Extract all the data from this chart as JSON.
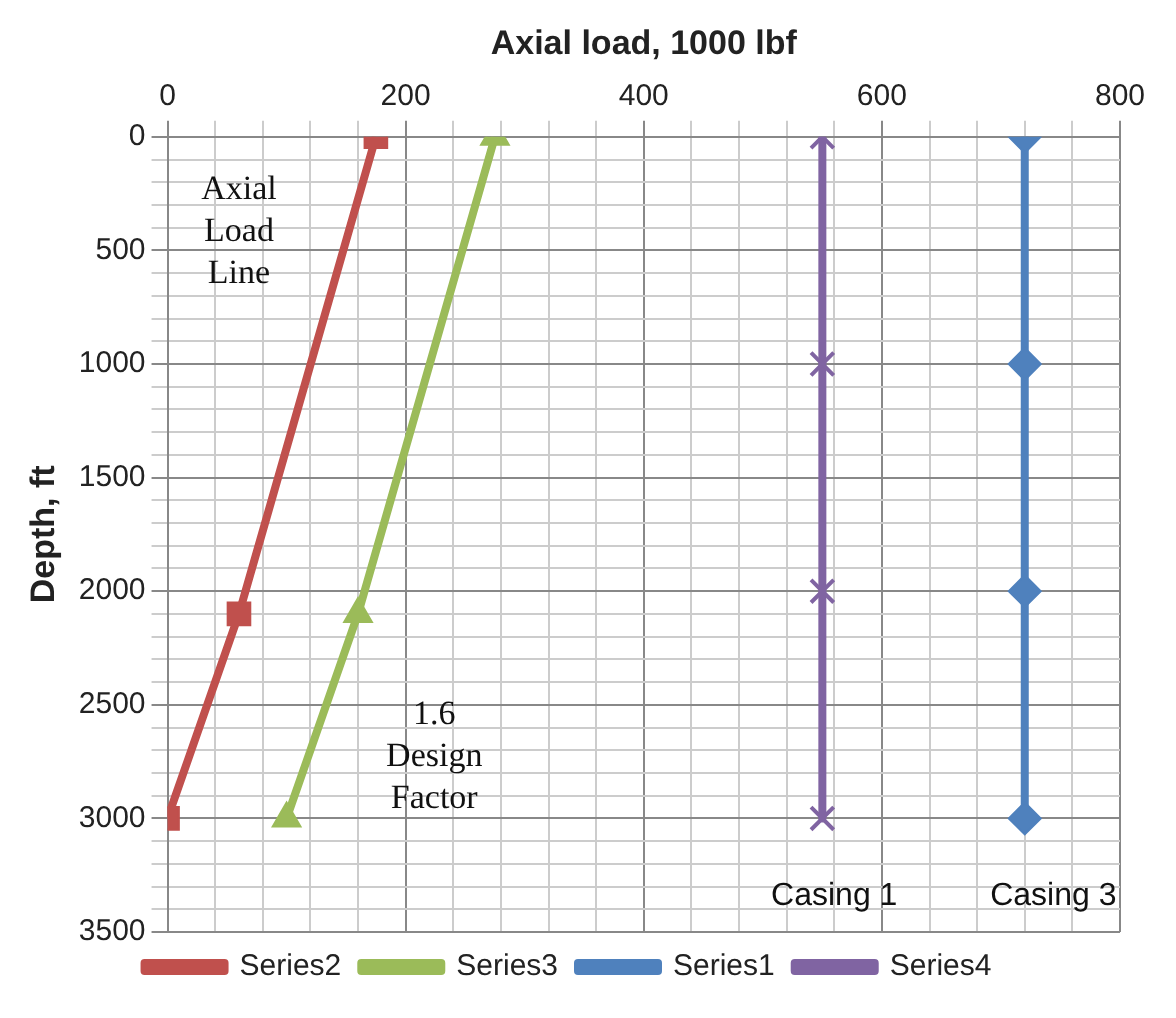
{
  "chart_data": {
    "type": "line",
    "xlabel": "Axial load, 1000 lbf",
    "ylabel": "Depth, ft",
    "xlim": [
      0,
      800
    ],
    "xticks": [
      0,
      200,
      400,
      600,
      800
    ],
    "ylim": [
      3500,
      0
    ],
    "yticks": [
      0,
      500,
      1000,
      1500,
      2000,
      2500,
      3000,
      3500
    ],
    "grid": true,
    "legend": "bottom",
    "line_style": "solid",
    "series": [
      {
        "name": "Series2",
        "color": "#c0504d",
        "marker": "square",
        "x": [
          175,
          60,
          0
        ],
        "values": [
          0,
          2100,
          3000
        ]
      },
      {
        "name": "Series3",
        "color": "#9bbb59",
        "marker": "triangle",
        "x": [
          275,
          160,
          100
        ],
        "values": [
          0,
          2100,
          3000
        ]
      },
      {
        "name": "Series1",
        "color": "#4f81bd",
        "marker": "diamond",
        "x": [
          720,
          720,
          720,
          720
        ],
        "values": [
          0,
          1000,
          2000,
          3000
        ]
      },
      {
        "name": "Series4",
        "color": "#8064a2",
        "marker": "cross",
        "x": [
          550,
          550,
          550,
          550
        ],
        "values": [
          0,
          1000,
          2000,
          3000
        ]
      }
    ],
    "annotations": [
      "Axial Load Line",
      "1.6 Design Factor",
      "Casing 1",
      "Casing 3"
    ]
  }
}
